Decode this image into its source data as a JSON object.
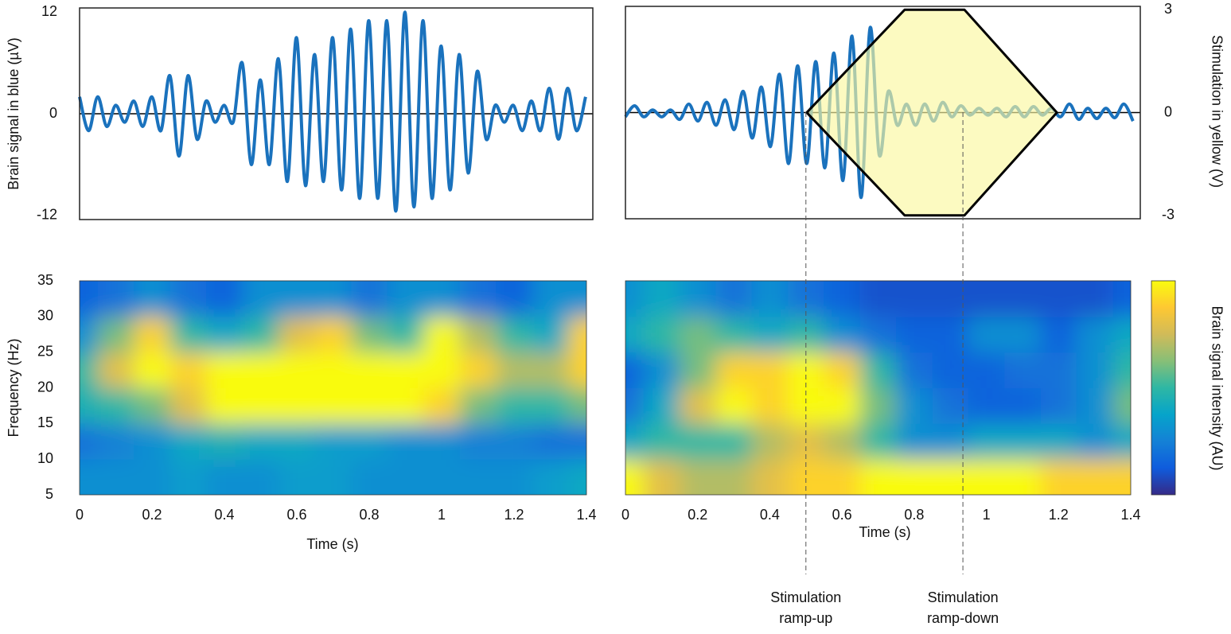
{
  "chart_data": [
    {
      "type": "line",
      "ylabel": "Brain signal in blue (µV)",
      "xlim": [
        0,
        1.42
      ],
      "ylim": [
        -12.5,
        12.5
      ],
      "yticks": [
        -12,
        0,
        12
      ],
      "x": [
        0,
        0.025,
        0.05,
        0.075,
        0.1,
        0.125,
        0.15,
        0.175,
        0.2,
        0.225,
        0.25,
        0.275,
        0.3,
        0.325,
        0.35,
        0.375,
        0.4,
        0.425,
        0.45,
        0.475,
        0.5,
        0.525,
        0.55,
        0.575,
        0.6,
        0.625,
        0.65,
        0.675,
        0.7,
        0.725,
        0.75,
        0.775,
        0.8,
        0.825,
        0.85,
        0.875,
        0.9,
        0.925,
        0.95,
        0.975,
        1.0,
        1.025,
        1.05,
        1.075,
        1.1,
        1.125,
        1.15,
        1.175,
        1.2,
        1.225,
        1.25,
        1.275,
        1.3,
        1.325,
        1.35,
        1.375,
        1.4
      ],
      "series": [
        {
          "color": "#1a72bd",
          "values": [
            2,
            -2,
            2,
            -1.5,
            1,
            -1,
            1.5,
            -1.5,
            2,
            -2,
            4.5,
            -5,
            4.5,
            -3,
            1.5,
            -1,
            1,
            -1,
            6,
            -6,
            4,
            -6,
            6.5,
            -8,
            9,
            -8.5,
            7,
            -8,
            9,
            -9,
            10,
            -10,
            11,
            -10,
            11,
            -11.5,
            12,
            -11,
            11,
            -10,
            8,
            -9,
            7,
            -7,
            5,
            -3,
            1,
            -1,
            1,
            -2,
            1.5,
            -2,
            3,
            -3,
            3,
            -2,
            2
          ]
        }
      ]
    },
    {
      "type": "line",
      "y2label": "Stimulation in yellow (V)",
      "xlim": [
        0,
        1.42
      ],
      "ylim": [
        -12.5,
        12.5
      ],
      "y2lim": [
        -3.1,
        3.1
      ],
      "y2ticks": [
        -3,
        0,
        3
      ],
      "x": [
        0,
        0.025,
        0.05,
        0.075,
        0.1,
        0.125,
        0.15,
        0.175,
        0.2,
        0.225,
        0.25,
        0.275,
        0.3,
        0.325,
        0.35,
        0.375,
        0.4,
        0.425,
        0.45,
        0.475,
        0.5,
        0.525,
        0.55,
        0.575,
        0.6,
        0.625,
        0.65,
        0.675,
        0.7,
        0.725,
        0.75,
        0.775,
        0.8,
        0.825,
        0.85,
        0.875,
        0.9,
        0.925,
        0.95,
        0.975,
        1.0,
        1.025,
        1.05,
        1.075,
        1.1,
        1.125,
        1.15,
        1.175,
        1.2,
        1.225,
        1.25,
        1.275,
        1.3,
        1.325,
        1.35,
        1.375,
        1.4
      ],
      "series": [
        {
          "color": "#1a72bd",
          "values": [
            -0.5,
            0.8,
            -0.5,
            0.3,
            -0.5,
            0.3,
            -0.8,
            1,
            -1,
            1.2,
            -1.5,
            1.5,
            -2,
            2.5,
            -3,
            3,
            -4,
            4.5,
            -6,
            5.5,
            -6,
            6,
            -6.5,
            7,
            -8,
            9,
            -10,
            10,
            -5,
            2.5,
            -1.5,
            1,
            -1.5,
            1,
            -1,
            1.2,
            -0.5,
            0.8,
            -0.3,
            0.5,
            -0.3,
            0.5,
            -0.5,
            0.7,
            -0.5,
            0.7,
            -0.3,
            0.5,
            -0.5,
            1,
            -0.8,
            0.5,
            -0.7,
            0.5,
            -0.6,
            1,
            -1
          ]
        }
      ],
      "envelope": {
        "axis": "y2",
        "color": "#fbf7a0",
        "x": [
          0.5,
          0.77,
          0.935,
          1.19
        ],
        "upper": [
          0,
          3,
          3,
          0
        ],
        "lower": [
          0,
          -3,
          -3,
          0
        ]
      }
    },
    {
      "type": "heatmap",
      "xlabel": "Time (s)",
      "ylabel": "Frequency (Hz)",
      "xlim": [
        0,
        1.4
      ],
      "ylim": [
        5,
        35
      ],
      "xticks": [
        0,
        0.2,
        0.4,
        0.6,
        0.8,
        1,
        1.2,
        1.4
      ],
      "yticks": [
        5,
        10,
        15,
        20,
        25,
        30,
        35
      ],
      "times": [
        0,
        0.1,
        0.2,
        0.3,
        0.4,
        0.5,
        0.6,
        0.7,
        0.8,
        0.9,
        1.0,
        1.1,
        1.2,
        1.3,
        1.4
      ],
      "freqs": [
        7.5,
        12.5,
        17.5,
        22.5,
        27.5,
        32.5
      ],
      "z": [
        [
          0.3,
          0.3,
          0.3,
          0.35,
          0.3,
          0.3,
          0.35,
          0.35,
          0.3,
          0.3,
          0.3,
          0.3,
          0.3,
          0.35,
          0.4
        ],
        [
          0.2,
          0.25,
          0.3,
          0.4,
          0.45,
          0.4,
          0.4,
          0.35,
          0.35,
          0.3,
          0.3,
          0.25,
          0.25,
          0.2,
          0.2
        ],
        [
          0.45,
          0.5,
          0.6,
          0.8,
          1,
          1,
          1,
          1,
          1,
          1,
          0.9,
          0.6,
          0.5,
          0.5,
          0.6
        ],
        [
          0.5,
          0.8,
          1,
          0.9,
          1,
          1,
          1,
          1,
          1,
          1,
          1,
          0.9,
          0.7,
          0.7,
          0.9
        ],
        [
          0.3,
          0.6,
          0.9,
          0.5,
          0.4,
          0.5,
          0.8,
          0.9,
          0.6,
          0.5,
          1,
          0.7,
          0.5,
          0.4,
          0.9
        ],
        [
          0.15,
          0.2,
          0.3,
          0.2,
          0.15,
          0.3,
          0.3,
          0.3,
          0.2,
          0.3,
          0.3,
          0.2,
          0.15,
          0.3,
          0.3
        ]
      ],
      "colormap": [
        "#352a87",
        "#0f5cdd",
        "#1481d6",
        "#06a4ca",
        "#2eb7a4",
        "#87bf77",
        "#d1bb59",
        "#fec832",
        "#f9fb0e"
      ]
    },
    {
      "type": "heatmap",
      "xlabel": "Time (s)",
      "xlim": [
        0,
        1.4
      ],
      "ylim": [
        5,
        35
      ],
      "xticks": [
        0,
        0.2,
        0.4,
        0.6,
        0.8,
        1,
        1.2,
        1.4
      ],
      "times": [
        0,
        0.1,
        0.2,
        0.3,
        0.4,
        0.5,
        0.6,
        0.7,
        0.8,
        0.9,
        1.0,
        1.1,
        1.2,
        1.3,
        1.4
      ],
      "freqs": [
        7.5,
        12.5,
        17.5,
        22.5,
        27.5,
        32.5
      ],
      "z": [
        [
          1,
          0.8,
          0.7,
          0.7,
          0.8,
          0.9,
          0.9,
          1,
          1,
          1,
          1,
          1,
          0.9,
          0.9,
          0.9
        ],
        [
          0.4,
          0.5,
          0.5,
          0.5,
          0.7,
          0.8,
          0.7,
          0.5,
          0.3,
          0.3,
          0.4,
          0.4,
          0.4,
          0.3,
          0.4
        ],
        [
          0.2,
          0.4,
          0.8,
          1,
          0.9,
          1,
          1,
          0.6,
          0.3,
          0.2,
          0.15,
          0.15,
          0.2,
          0.3,
          0.6
        ],
        [
          0.15,
          0.3,
          0.6,
          0.9,
          0.9,
          1,
          0.9,
          0.5,
          0.2,
          0.15,
          0.15,
          0.2,
          0.2,
          0.3,
          0.5
        ],
        [
          0.4,
          0.5,
          0.6,
          0.5,
          0.4,
          0.5,
          0.3,
          0.2,
          0.15,
          0.15,
          0.3,
          0.3,
          0.15,
          0.3,
          0.4
        ],
        [
          0.3,
          0.4,
          0.3,
          0.2,
          0.3,
          0.2,
          0.15,
          0.1,
          0.1,
          0.1,
          0.1,
          0.1,
          0.1,
          0.1,
          0.15
        ]
      ],
      "colormap": [
        "#352a87",
        "#0f5cdd",
        "#1481d6",
        "#06a4ca",
        "#2eb7a4",
        "#87bf77",
        "#d1bb59",
        "#fec832",
        "#f9fb0e"
      ],
      "colorbar_label": "Brain signal intensity (AU)",
      "annotations": [
        {
          "x": 0.5,
          "lines": [
            "Stimulation",
            "ramp-up"
          ]
        },
        {
          "x": 0.935,
          "lines": [
            "Stimulation",
            "ramp-down"
          ]
        }
      ]
    }
  ]
}
